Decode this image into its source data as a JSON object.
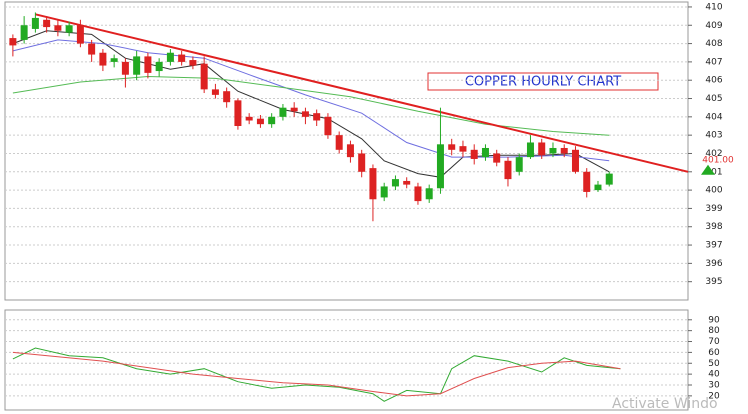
{
  "chart_data": [
    {
      "type": "candlestick",
      "annotation": "COPPER HOURLY CHART",
      "last_price_label": "401.00",
      "last_price": 401,
      "up_color": "#22aa22",
      "down_color": "#dd2222",
      "grid": true,
      "xlim": [
        -0.7,
        60
      ],
      "ylim": [
        394,
        410.27
      ],
      "yticks": [
        395,
        396,
        397,
        398,
        399,
        400,
        401,
        402,
        403,
        404,
        405,
        406,
        407,
        408,
        409,
        410
      ],
      "open": [
        408.3,
        408.2,
        408.8,
        409.3,
        409,
        408.6,
        409,
        408,
        407.5,
        407,
        407,
        406.3,
        407.3,
        406.5,
        407,
        407.4,
        407.1,
        406.9,
        405.5,
        405.4,
        404.9,
        404,
        403.9,
        403.6,
        404,
        404.5,
        404.3,
        404.2,
        404,
        403,
        402.5,
        402,
        401.2,
        399.6,
        400.2,
        400.5,
        400.2,
        399.5,
        400.1,
        402.5,
        402.4,
        402.2,
        401.8,
        402,
        401.6,
        401,
        401.8,
        402.6,
        402,
        402.3,
        402.2,
        401,
        400,
        400.3
      ],
      "high": [
        408.5,
        409.5,
        409.7,
        409.5,
        409.3,
        409.2,
        409.3,
        408.2,
        407.7,
        407.4,
        407.2,
        407.6,
        407.5,
        407.2,
        407.7,
        407.6,
        407.3,
        407.3,
        405.8,
        405.6,
        405,
        404.2,
        404.1,
        404.2,
        404.7,
        404.8,
        404.5,
        404.4,
        404.2,
        403.2,
        402.7,
        402.2,
        401.4,
        400.4,
        400.8,
        400.7,
        400.4,
        400.3,
        404.5,
        402.8,
        402.7,
        402.5,
        402.5,
        402.2,
        401.8,
        402,
        403,
        402.8,
        402.6,
        402.5,
        402.4,
        401.2,
        400.5,
        401
      ],
      "low": [
        407.3,
        408,
        408.6,
        408.6,
        408.4,
        408.4,
        407.8,
        407,
        406.5,
        406.7,
        405.6,
        406,
        406.1,
        406.2,
        406.8,
        406.8,
        406.6,
        405.3,
        405,
        404.5,
        403.3,
        403.6,
        403.4,
        403.4,
        403.8,
        404,
        403.6,
        403.5,
        402.8,
        402,
        401.5,
        400.7,
        398.3,
        399.4,
        400,
        400.1,
        399.2,
        399.3,
        399.8,
        401.9,
        401.8,
        401.4,
        401.6,
        401.3,
        400.2,
        400.8,
        401.7,
        401.7,
        401.8,
        401.8,
        400.9,
        399.6,
        399.9,
        400.2
      ],
      "close": [
        407.9,
        409,
        409.4,
        408.9,
        408.7,
        409,
        408,
        407.4,
        406.8,
        407.2,
        406.3,
        407.3,
        406.4,
        407,
        407.5,
        407,
        406.8,
        405.5,
        405.2,
        404.8,
        403.5,
        403.8,
        403.6,
        404,
        404.5,
        404.3,
        404,
        403.8,
        403,
        402.2,
        401.8,
        401,
        399.5,
        400.2,
        400.6,
        400.3,
        399.4,
        400.1,
        402.5,
        402.2,
        402.1,
        401.7,
        402.3,
        401.5,
        400.6,
        401.8,
        402.6,
        401.9,
        402.3,
        402,
        401,
        399.9,
        400.3,
        400.9
      ],
      "lines": [
        {
          "color": "#333333",
          "x": [
            0,
            3,
            7,
            10,
            14,
            17,
            20,
            24,
            28,
            31,
            33,
            36,
            38,
            40,
            43,
            47,
            50,
            53
          ],
          "values": [
            408,
            408.7,
            408.5,
            407.2,
            406.6,
            406.9,
            405.4,
            404.4,
            403.9,
            402.8,
            401.6,
            400.9,
            400.7,
            401.8,
            401.9,
            401.9,
            402,
            401
          ]
        },
        {
          "color": "#6f6fe0",
          "x": [
            0,
            4,
            8,
            12,
            17,
            21,
            26,
            31,
            35,
            39,
            44,
            49,
            53
          ],
          "values": [
            407.6,
            408.2,
            408,
            407.5,
            407.2,
            406.3,
            405.2,
            404.2,
            402.6,
            401.8,
            401.8,
            401.9,
            401.6
          ]
        },
        {
          "color": "#55bb55",
          "x": [
            0,
            6,
            12,
            18,
            24,
            30,
            36,
            42,
            48,
            53
          ],
          "values": [
            405.3,
            405.9,
            406.2,
            406.1,
            405.6,
            405.1,
            404.3,
            403.6,
            403.2,
            403
          ]
        },
        {
          "color": "#e02020",
          "x": [
            2,
            60
          ],
          "values": [
            409.6,
            401
          ]
        }
      ]
    },
    {
      "type": "line",
      "grid": true,
      "xlim": [
        -0.7,
        60
      ],
      "ylim": [
        7,
        99
      ],
      "yticks": [
        20,
        30,
        40,
        50,
        60,
        70,
        80,
        90
      ],
      "lines": [
        {
          "color": "#33aa33",
          "x": [
            0,
            2,
            5,
            8,
            11,
            14,
            17,
            20,
            23,
            26,
            29,
            32,
            33,
            35,
            38,
            39,
            41,
            44,
            47,
            49,
            51,
            54
          ],
          "values": [
            54,
            64,
            57,
            55,
            45,
            40,
            45,
            33,
            27,
            30,
            28,
            22,
            15,
            25,
            22,
            45,
            57,
            52,
            42,
            55,
            48,
            45
          ]
        },
        {
          "color": "#e05050",
          "x": [
            0,
            4,
            8,
            12,
            16,
            20,
            24,
            28,
            32,
            35,
            38,
            41,
            44,
            47,
            50,
            54
          ],
          "values": [
            60,
            56,
            52,
            46,
            40,
            36,
            32,
            30,
            24,
            20,
            22,
            36,
            46,
            50,
            52,
            45
          ]
        }
      ]
    }
  ],
  "watermark": "Activate Windo"
}
